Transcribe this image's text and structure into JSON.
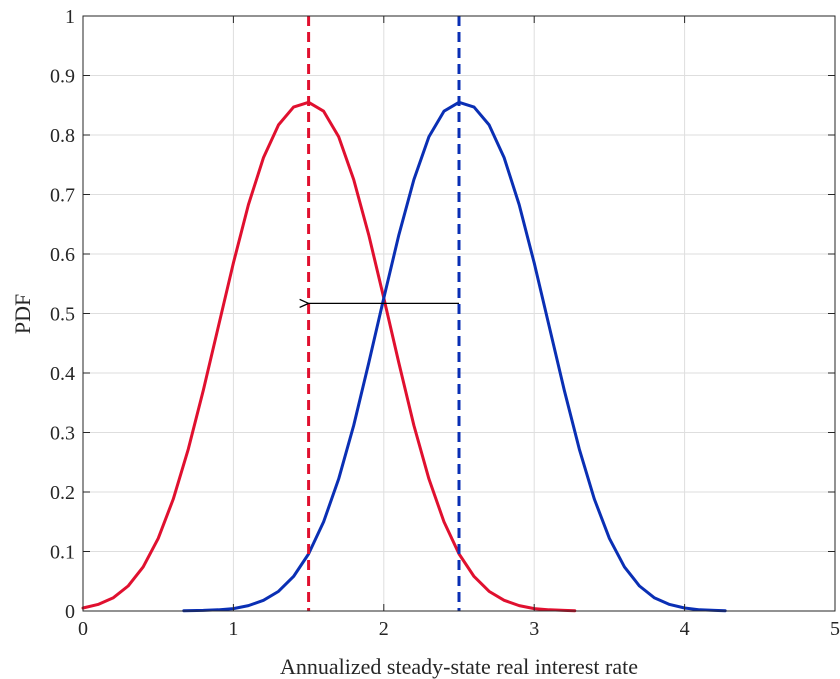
{
  "chart_data": {
    "type": "line",
    "title": "",
    "xlabel": "Annualized steady-state real interest rate",
    "ylabel": "PDF",
    "xlim": [
      0,
      5
    ],
    "ylim": [
      0,
      1
    ],
    "xticks": [
      0,
      1,
      2,
      3,
      4,
      5
    ],
    "yticks": [
      0,
      0.1,
      0.2,
      0.3,
      0.4,
      0.5,
      0.6,
      0.7,
      0.8,
      0.9,
      1
    ],
    "xtick_labels": [
      "0",
      "1",
      "2",
      "3",
      "4",
      "5"
    ],
    "ytick_labels": [
      "0",
      "0.1",
      "0.2",
      "0.3",
      "0.4",
      "0.5",
      "0.6",
      "0.7",
      "0.8",
      "0.9",
      "1"
    ],
    "grid": true,
    "series": [
      {
        "color": "#e0102f",
        "style": "solid",
        "x": [
          0,
          0.1,
          0.2,
          0.3,
          0.4,
          0.5,
          0.6,
          0.7,
          0.8,
          0.9,
          1.0,
          1.1,
          1.2,
          1.3,
          1.4,
          1.5,
          1.6,
          1.7,
          1.8,
          1.9,
          2.0,
          2.1,
          2.2,
          2.3,
          2.4,
          2.5,
          2.6,
          2.7,
          2.8,
          2.9,
          3.0,
          3.1,
          3.2,
          3.27
        ],
        "y": [
          0.005,
          0.011,
          0.022,
          0.042,
          0.074,
          0.122,
          0.188,
          0.272,
          0.371,
          0.478,
          0.585,
          0.683,
          0.762,
          0.817,
          0.847,
          0.855,
          0.84,
          0.797,
          0.725,
          0.632,
          0.526,
          0.417,
          0.312,
          0.222,
          0.15,
          0.096,
          0.058,
          0.033,
          0.018,
          0.009,
          0.004,
          0.002,
          0.001,
          0.0005
        ]
      },
      {
        "color": "#0a2fb4",
        "style": "solid",
        "x": [
          0.67,
          0.8,
          0.9,
          1.0,
          1.1,
          1.2,
          1.3,
          1.4,
          1.5,
          1.6,
          1.7,
          1.8,
          1.9,
          2.0,
          2.1,
          2.2,
          2.3,
          2.4,
          2.5,
          2.6,
          2.7,
          2.8,
          2.9,
          3.0,
          3.1,
          3.2,
          3.3,
          3.4,
          3.5,
          3.6,
          3.7,
          3.8,
          3.9,
          4.0,
          4.1,
          4.2,
          4.27
        ],
        "y": [
          0.0005,
          0.001,
          0.002,
          0.004,
          0.009,
          0.018,
          0.033,
          0.058,
          0.096,
          0.15,
          0.222,
          0.312,
          0.417,
          0.526,
          0.632,
          0.725,
          0.797,
          0.84,
          0.855,
          0.847,
          0.817,
          0.762,
          0.683,
          0.585,
          0.478,
          0.371,
          0.272,
          0.188,
          0.122,
          0.074,
          0.042,
          0.022,
          0.011,
          0.005,
          0.002,
          0.001,
          0.0005
        ]
      }
    ],
    "vlines": [
      {
        "x": 1.5,
        "color": "#e0102f",
        "style": "dashed"
      },
      {
        "x": 2.5,
        "color": "#0a2fb4",
        "style": "dashed"
      }
    ],
    "annotations": [
      {
        "type": "arrow",
        "from": [
          2.5,
          0.517
        ],
        "to": [
          1.5,
          0.517
        ],
        "color": "#000000"
      }
    ]
  }
}
